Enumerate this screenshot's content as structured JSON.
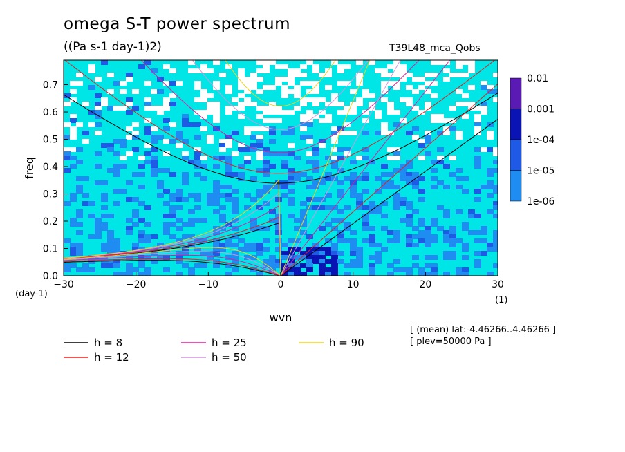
{
  "header": {
    "title": "omega S-T power spectrum",
    "units": "((Pa s-1 day-1)2)",
    "experiment": "T39L48_mca_Qobs"
  },
  "info": {
    "line1": "[ (mean) lat:-4.46266..4.46266 ]",
    "line2": "[ plev=50000 Pa ]"
  },
  "chart_data": {
    "type": "heatmap",
    "title": "omega S-T power spectrum",
    "subtitle": "((Pa s-1 day-1)2)",
    "xlabel": "wvn",
    "ylabel": "freq",
    "x_unit_label": "(1)",
    "y_unit_label": "(day-1)",
    "xlim": [
      -30,
      30
    ],
    "ylim": [
      0,
      0.79
    ],
    "x_ticks": [
      -30,
      -20,
      -10,
      0,
      10,
      20,
      30
    ],
    "x_tick_labels": [
      "−30",
      "−20",
      "−10",
      "0",
      "10",
      "20",
      "30"
    ],
    "y_ticks": [
      0,
      0.1,
      0.2,
      0.3,
      0.4,
      0.5,
      0.6,
      0.7
    ],
    "y_tick_labels": [
      "0.0",
      "0.1",
      "0.2",
      "0.3",
      "0.4",
      "0.5",
      "0.6",
      "0.7"
    ],
    "colorbar": {
      "levels": [
        "0.01",
        "0.001",
        "1e-04",
        "1e-05",
        "1e-06"
      ],
      "colors": [
        "#5a1ab4",
        "#0a14b4",
        "#1e5ae6",
        "#1e8cf0",
        "#00e6e6"
      ]
    },
    "dispersion_curves": [
      {
        "name": "h =  8",
        "h": 8,
        "color": "#000000"
      },
      {
        "name": "h = 12",
        "h": 12,
        "color": "#e61e1e"
      },
      {
        "name": "h = 25",
        "h": 25,
        "color": "#dc1ea0"
      },
      {
        "name": "h = 50",
        "h": 50,
        "color": "#d296dc"
      },
      {
        "name": "h = 90",
        "h": 90,
        "color": "#f0d21e"
      }
    ],
    "grid": false,
    "legend_position": "bottom-left"
  }
}
